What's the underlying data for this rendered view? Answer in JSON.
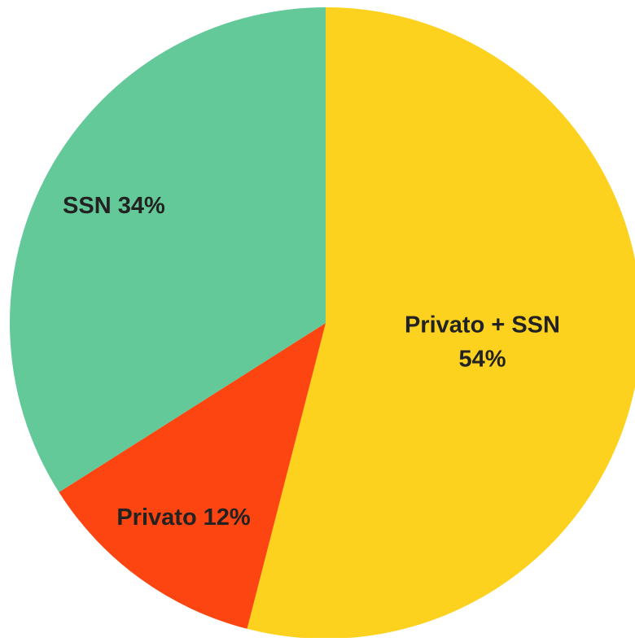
{
  "chart_data": {
    "type": "pie",
    "categories": [
      "Privato + SSN",
      "Privato",
      "SSN"
    ],
    "values": [
      54,
      12,
      34
    ],
    "value_labels": [
      "54%",
      "12%",
      "34%"
    ],
    "colors": [
      "#fcd21f",
      "#fc4510",
      "#64c998"
    ]
  }
}
